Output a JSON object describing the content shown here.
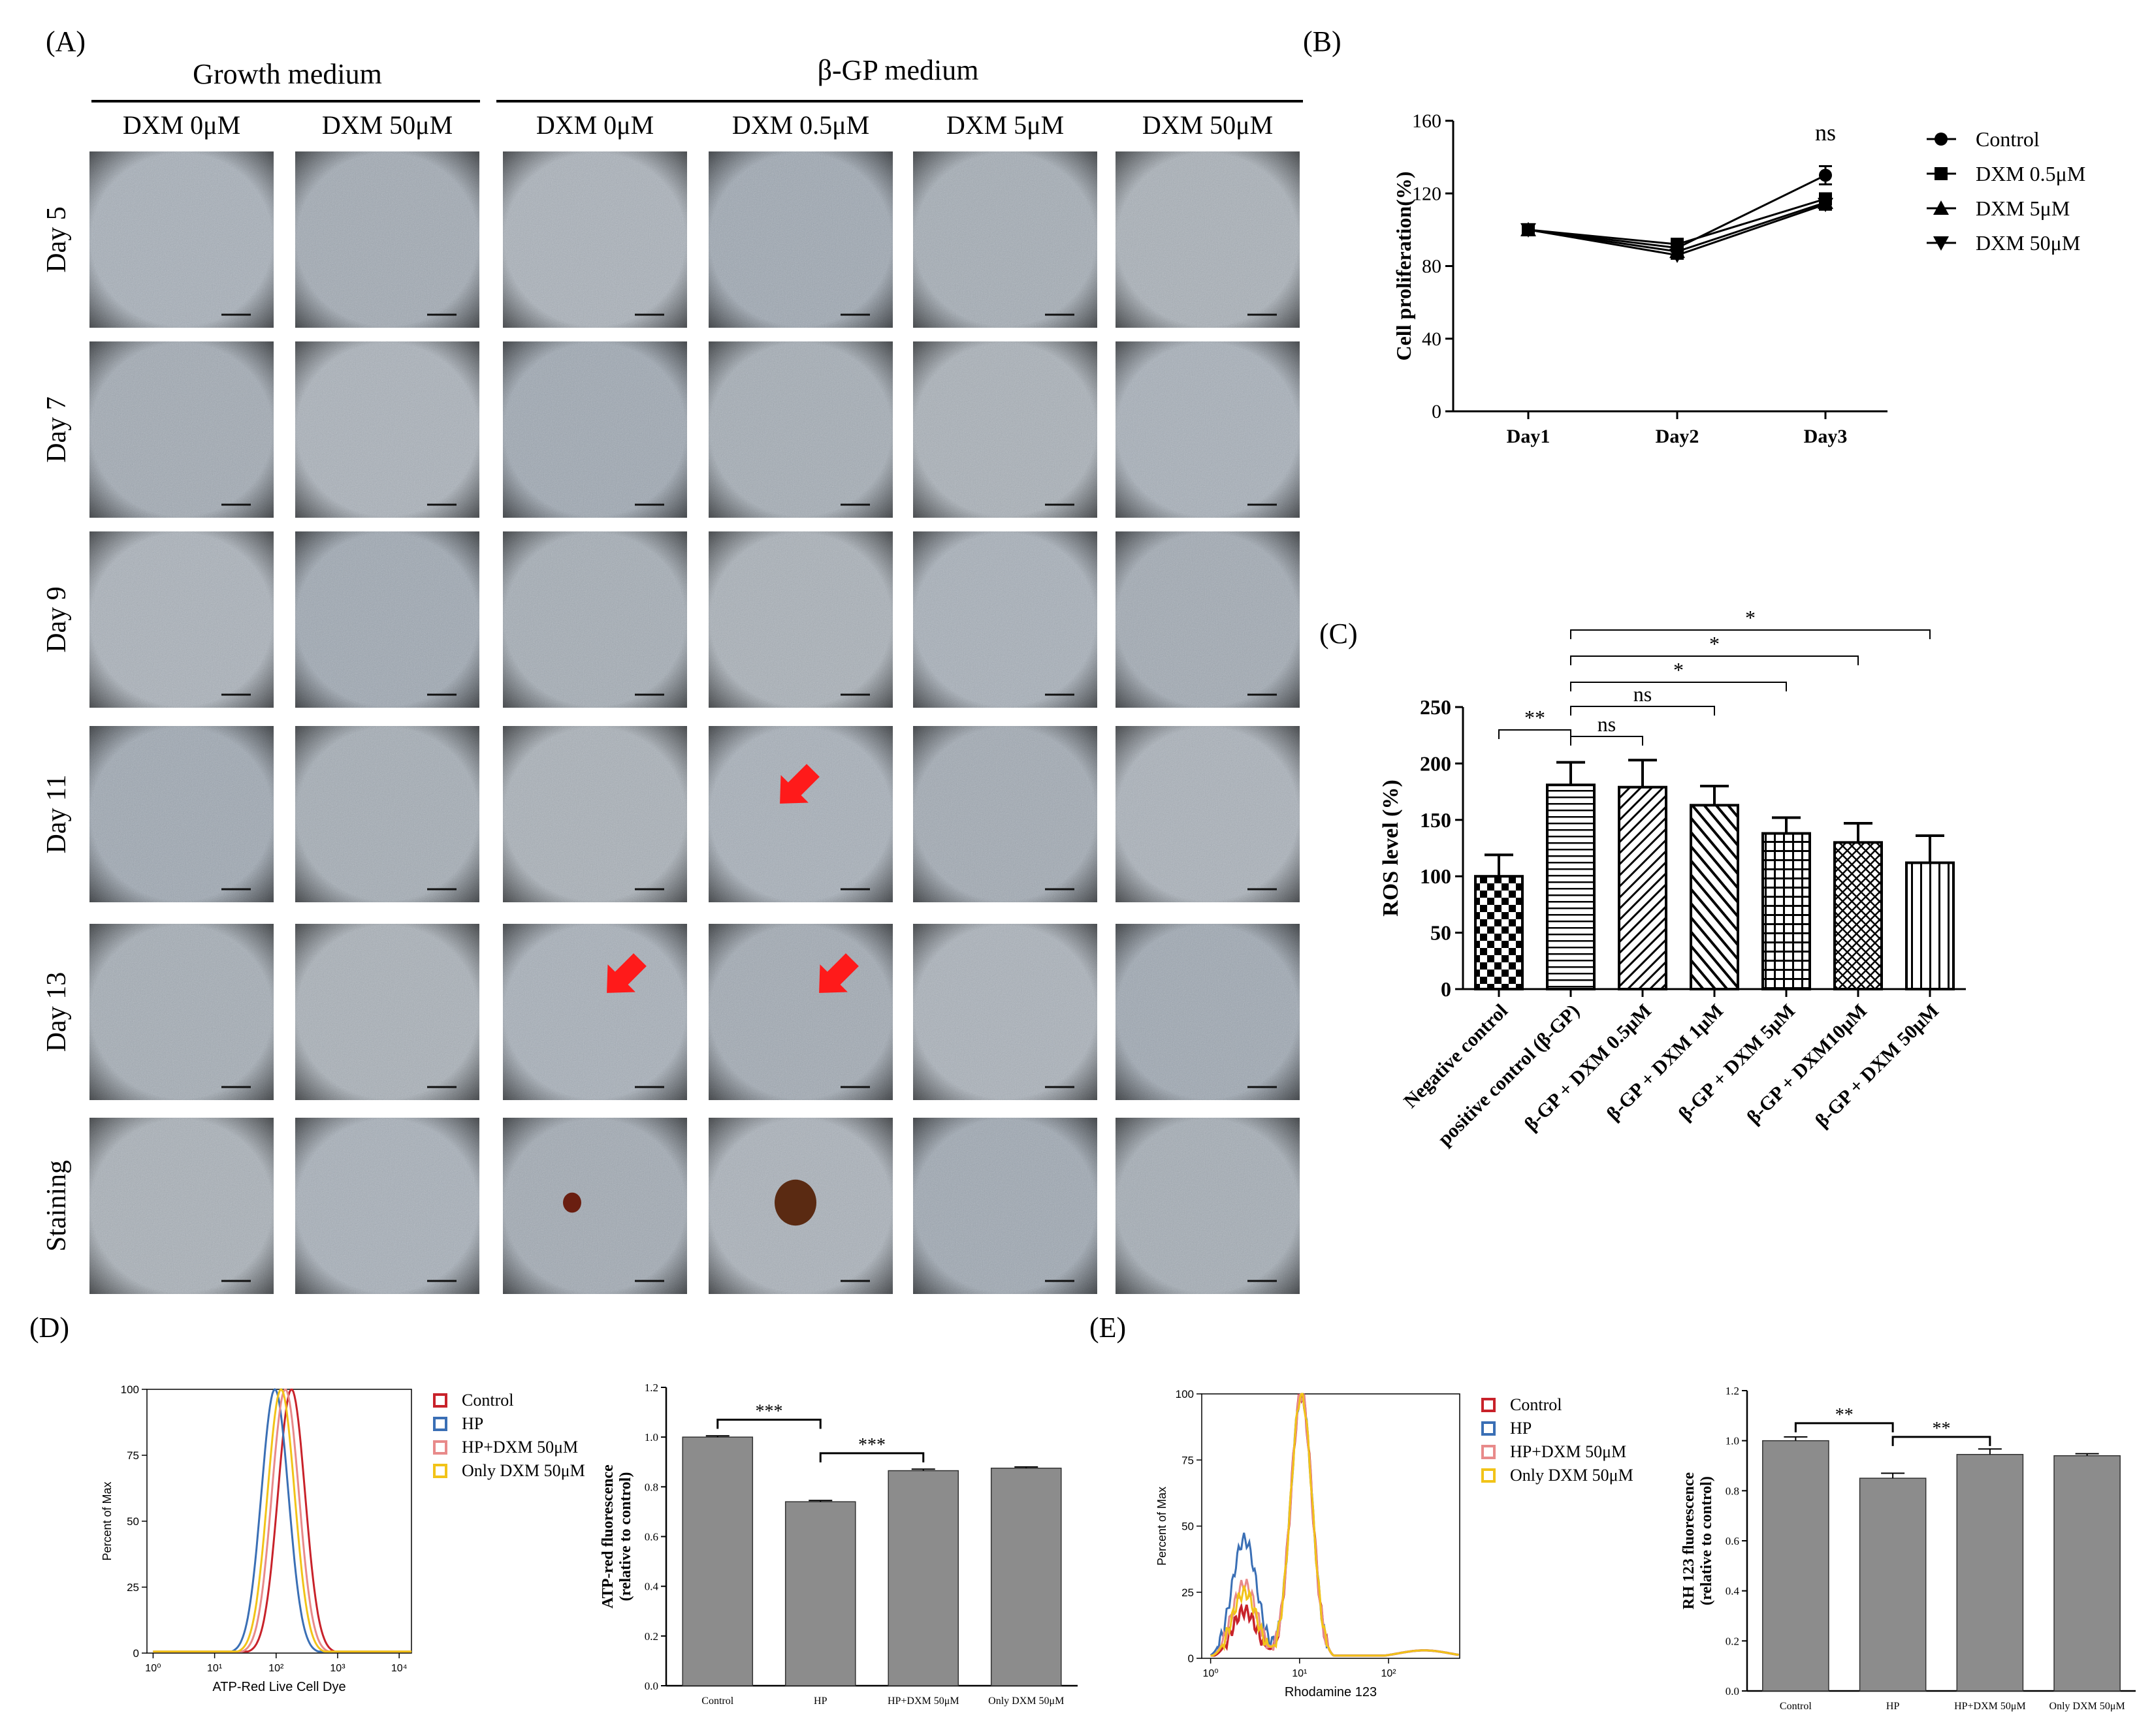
{
  "panel_labels": {
    "A": "(A)",
    "B": "(B)",
    "C": "(C)",
    "D": "(D)",
    "E": "(E)"
  },
  "panel_a": {
    "group_headers": [
      "Growth medium",
      "β-GP medium"
    ],
    "columns": [
      "DXM 0μM",
      "DXM 50μM",
      "DXM  0μM",
      "DXM 0.5μM",
      "DXM 5μM",
      "DXM 50μM"
    ],
    "rows": [
      "Day 5",
      "Day 7",
      "Day 9",
      "Day 11",
      "Day 13",
      "Staining"
    ]
  },
  "chart_data": [
    {
      "id": "B",
      "type": "line",
      "title": "",
      "xlabel": "",
      "ylabel": "Cell proliferation(%)",
      "categories": [
        "Day1",
        "Day2",
        "Day3"
      ],
      "ylim": [
        0,
        160
      ],
      "yticks": [
        "0",
        "40",
        "80",
        "120",
        "160"
      ],
      "series": [
        {
          "name": "Control",
          "marker": "circle",
          "values": [
            100,
            90,
            130
          ],
          "err": [
            0,
            2,
            5
          ]
        },
        {
          "name": "DXM 0.5μM",
          "marker": "square",
          "values": [
            100,
            92,
            117
          ],
          "err": [
            0,
            2,
            3
          ]
        },
        {
          "name": "DXM 5μM",
          "marker": "triangle-up",
          "values": [
            100,
            88,
            115
          ],
          "err": [
            0,
            2,
            3
          ]
        },
        {
          "name": "DXM 50μM",
          "marker": "triangle-down",
          "values": [
            100,
            86,
            114
          ],
          "err": [
            0,
            2,
            3
          ]
        }
      ],
      "annotations": [
        {
          "text": "ns",
          "x": "Day3"
        }
      ]
    },
    {
      "id": "C",
      "type": "bar",
      "ylabel": "ROS  level (%)",
      "ylim": [
        0,
        250
      ],
      "yticks": [
        "0",
        "50",
        "100",
        "150",
        "200",
        "250"
      ],
      "categories": [
        "Negative control",
        "positive control (β-GP)",
        "β-GP + DXM 0.5μM",
        "β-GP + DXM 1μM",
        "β-GP + DXM 5μM",
        "β-GP + DXM10μM",
        "β-GP + DXM 50μM"
      ],
      "values": [
        100,
        181,
        179,
        163,
        138,
        130,
        112
      ],
      "err": [
        19,
        20,
        24,
        17,
        14,
        17,
        24
      ],
      "patterns": [
        "checker",
        "hlines",
        "diag",
        "diag2",
        "grid",
        "crosshatch",
        "vlines"
      ],
      "significance": [
        {
          "from": 0,
          "to": 1,
          "label": "**"
        },
        {
          "from": 1,
          "to": 2,
          "label": "ns"
        },
        {
          "from": 1,
          "to": 3,
          "label": "ns"
        },
        {
          "from": 1,
          "to": 4,
          "label": "*"
        },
        {
          "from": 1,
          "to": 5,
          "label": "*"
        },
        {
          "from": 1,
          "to": 6,
          "label": "*"
        }
      ]
    },
    {
      "id": "D-hist",
      "type": "line",
      "xlabel": "ATP-Red Live Cell Dye",
      "ylabel": "Percent of Max",
      "yticks": [
        "0",
        "25",
        "50",
        "75",
        "100"
      ],
      "xticks": [
        "10⁰",
        "10¹",
        "10²",
        "10³",
        "10⁴"
      ],
      "legend": [
        "Control",
        "HP",
        "HP+DXM 50μM",
        "Only DXM 50μM"
      ],
      "legend_colors": [
        "#c8222a",
        "#3a6fb5",
        "#e88a8a",
        "#f2c318"
      ],
      "peaks_log": [
        2.25,
        1.98,
        2.15,
        2.08
      ]
    },
    {
      "id": "D-bar",
      "type": "bar",
      "ylabel": "ATP-red fluorescence (relative to control)",
      "ylim": [
        0,
        1.2
      ],
      "yticks": [
        "0.0",
        "0.2",
        "0.4",
        "0.6",
        "0.8",
        "1.0",
        "1.2"
      ],
      "categories": [
        "Control",
        "HP",
        "HP+DXM 50μM",
        "Only DXM 50μM"
      ],
      "values": [
        1.0,
        0.74,
        0.865,
        0.875
      ],
      "err": [
        0.005,
        0.005,
        0.006,
        0.005
      ],
      "significance": [
        {
          "from": 0,
          "to": 1,
          "label": "***"
        },
        {
          "from": 1,
          "to": 2,
          "label": "***"
        }
      ]
    },
    {
      "id": "E-hist",
      "type": "line",
      "xlabel": "Rhodamine 123",
      "ylabel": "Percent of Max",
      "yticks": [
        "0",
        "25",
        "50",
        "75",
        "100"
      ],
      "xticks": [
        "10⁰",
        "10¹",
        "10²"
      ],
      "legend": [
        "Control",
        "HP",
        "HP+DXM 50μM",
        "Only DXM 50μM"
      ],
      "legend_colors": [
        "#c8222a",
        "#3a6fb5",
        "#e88a8a",
        "#f2c318"
      ],
      "shoulder_heights": [
        18,
        45,
        28,
        25
      ]
    },
    {
      "id": "E-bar",
      "type": "bar",
      "ylabel": "RH 123 fluorescence (relative to control)",
      "ylim": [
        0,
        1.2
      ],
      "yticks": [
        "0.0",
        "0.2",
        "0.4",
        "0.6",
        "0.8",
        "1.0",
        "1.2"
      ],
      "categories": [
        "Control",
        "HP",
        "HP+DXM 50μM",
        "Only DXM 50μM"
      ],
      "values": [
        1.0,
        0.85,
        0.945,
        0.94
      ],
      "err": [
        0.015,
        0.02,
        0.022,
        0.008
      ],
      "significance": [
        {
          "from": 0,
          "to": 1,
          "label": "**"
        },
        {
          "from": 1,
          "to": 2,
          "label": "**"
        }
      ]
    }
  ]
}
